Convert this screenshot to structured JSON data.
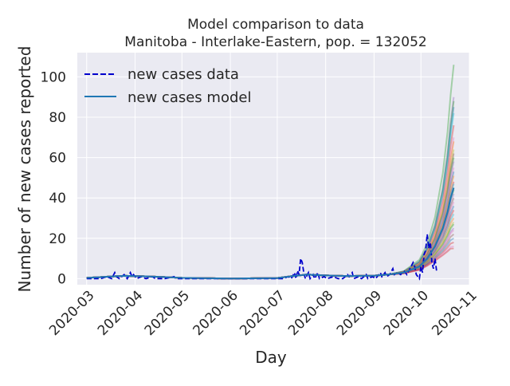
{
  "chart_data": {
    "type": "line",
    "title": "Model comparison to data",
    "subtitle": "Manitoba - Interlake-Eastern, pop. = 132052",
    "xlabel": "Day",
    "ylabel": "Number of new cases reported",
    "xlim": [
      "2020-02-24",
      "2020-11-01"
    ],
    "ylim": [
      -3,
      112
    ],
    "x_ticks": [
      "2020-03",
      "2020-04",
      "2020-05",
      "2020-06",
      "2020-07",
      "2020-08",
      "2020-09",
      "2020-10",
      "2020-11"
    ],
    "y_ticks": [
      0,
      20,
      40,
      60,
      80,
      100
    ],
    "grid": true,
    "legend_position": "top-left",
    "style": {
      "background": "#eaeaf2",
      "data_color": "#0000cc",
      "model_color": "#1f77b4"
    },
    "series": [
      {
        "name": "new cases data",
        "style": "dashed",
        "points": [
          [
            "2020-03-01",
            0
          ],
          [
            "2020-03-10",
            0
          ],
          [
            "2020-03-14",
            1
          ],
          [
            "2020-03-17",
            0
          ],
          [
            "2020-03-19",
            3
          ],
          [
            "2020-03-20",
            1
          ],
          [
            "2020-03-22",
            0
          ],
          [
            "2020-03-25",
            2
          ],
          [
            "2020-03-27",
            0
          ],
          [
            "2020-03-29",
            3
          ],
          [
            "2020-03-30",
            1
          ],
          [
            "2020-03-31",
            2
          ],
          [
            "2020-04-02",
            0
          ],
          [
            "2020-04-05",
            1
          ],
          [
            "2020-04-08",
            0
          ],
          [
            "2020-04-12",
            1
          ],
          [
            "2020-04-14",
            0
          ],
          [
            "2020-04-20",
            0
          ],
          [
            "2020-04-26",
            1
          ],
          [
            "2020-04-27",
            0
          ],
          [
            "2020-05-15",
            0
          ],
          [
            "2020-06-15",
            0
          ],
          [
            "2020-07-05",
            0
          ],
          [
            "2020-07-08",
            1
          ],
          [
            "2020-07-10",
            0
          ],
          [
            "2020-07-12",
            3
          ],
          [
            "2020-07-13",
            0
          ],
          [
            "2020-07-14",
            4
          ],
          [
            "2020-07-15",
            2
          ],
          [
            "2020-07-16",
            10
          ],
          [
            "2020-07-17",
            8
          ],
          [
            "2020-07-18",
            3
          ],
          [
            "2020-07-19",
            0
          ],
          [
            "2020-07-21",
            3
          ],
          [
            "2020-07-22",
            0
          ],
          [
            "2020-07-24",
            2
          ],
          [
            "2020-07-25",
            0
          ],
          [
            "2020-07-27",
            3
          ],
          [
            "2020-07-28",
            0
          ],
          [
            "2020-07-31",
            1
          ],
          [
            "2020-08-02",
            0
          ],
          [
            "2020-08-06",
            1
          ],
          [
            "2020-08-09",
            0
          ],
          [
            "2020-08-12",
            0
          ],
          [
            "2020-08-15",
            2
          ],
          [
            "2020-08-16",
            1
          ],
          [
            "2020-08-18",
            3
          ],
          [
            "2020-08-19",
            0
          ],
          [
            "2020-08-22",
            1
          ],
          [
            "2020-08-24",
            0
          ],
          [
            "2020-08-27",
            2
          ],
          [
            "2020-08-28",
            0
          ],
          [
            "2020-08-31",
            1
          ],
          [
            "2020-09-02",
            0
          ],
          [
            "2020-09-05",
            3
          ],
          [
            "2020-09-06",
            1
          ],
          [
            "2020-09-08",
            3
          ],
          [
            "2020-09-09",
            1
          ],
          [
            "2020-09-11",
            2
          ],
          [
            "2020-09-13",
            5
          ],
          [
            "2020-09-14",
            2
          ],
          [
            "2020-09-16",
            3
          ],
          [
            "2020-09-18",
            2
          ],
          [
            "2020-09-20",
            4
          ],
          [
            "2020-09-22",
            2
          ],
          [
            "2020-09-24",
            5
          ],
          [
            "2020-09-26",
            8
          ],
          [
            "2020-09-27",
            6
          ],
          [
            "2020-09-28",
            2
          ],
          [
            "2020-09-30",
            0
          ],
          [
            "2020-10-01",
            6
          ],
          [
            "2020-10-02",
            3
          ],
          [
            "2020-10-03",
            12
          ],
          [
            "2020-10-04",
            14
          ],
          [
            "2020-10-05",
            22
          ],
          [
            "2020-10-06",
            15
          ],
          [
            "2020-10-07",
            18
          ],
          [
            "2020-10-08",
            8
          ],
          [
            "2020-10-09",
            5
          ],
          [
            "2020-10-10",
            10
          ],
          [
            "2020-10-11",
            4
          ]
        ]
      },
      {
        "name": "new cases model",
        "style": "solid",
        "points": [
          [
            "2020-03-01",
            0.4
          ],
          [
            "2020-03-15",
            1.0
          ],
          [
            "2020-03-25",
            1.4
          ],
          [
            "2020-04-10",
            1.1
          ],
          [
            "2020-05-01",
            0.4
          ],
          [
            "2020-06-01",
            0.1
          ],
          [
            "2020-07-01",
            0.3
          ],
          [
            "2020-07-10",
            1.2
          ],
          [
            "2020-07-20",
            2.0
          ],
          [
            "2020-08-01",
            1.6
          ],
          [
            "2020-08-15",
            1.3
          ],
          [
            "2020-09-01",
            1.5
          ],
          [
            "2020-09-10",
            2.0
          ],
          [
            "2020-09-20",
            3.0
          ],
          [
            "2020-09-30",
            6.0
          ],
          [
            "2020-10-05",
            10.0
          ],
          [
            "2020-10-10",
            16.0
          ],
          [
            "2020-10-15",
            25.0
          ],
          [
            "2020-10-18",
            33.0
          ],
          [
            "2020-10-20",
            40.0
          ],
          [
            "2020-10-22",
            45.0
          ]
        ]
      }
    ],
    "model_realizations": [
      {
        "color": "#2ca02c",
        "end_value": 106
      },
      {
        "color": "#9467bd",
        "end_value": 90
      },
      {
        "color": "#2ca02c",
        "end_value": 88
      },
      {
        "color": "#1f77b4",
        "end_value": 85
      },
      {
        "color": "#17becf",
        "end_value": 82
      },
      {
        "color": "#d62728",
        "end_value": 76
      },
      {
        "color": "#e377c2",
        "end_value": 70
      },
      {
        "color": "#ff7f0e",
        "end_value": 68
      },
      {
        "color": "#bcbd22",
        "end_value": 64
      },
      {
        "color": "#8c564b",
        "end_value": 62
      },
      {
        "color": "#2ca02c",
        "end_value": 60
      },
      {
        "color": "#9467bd",
        "end_value": 58
      },
      {
        "color": "#e377c2",
        "end_value": 55
      },
      {
        "color": "#1f77b4",
        "end_value": 53
      },
      {
        "color": "#ff7f0e",
        "end_value": 51
      },
      {
        "color": "#d62728",
        "end_value": 48
      },
      {
        "color": "#17becf",
        "end_value": 47
      },
      {
        "color": "#bcbd22",
        "end_value": 45
      },
      {
        "color": "#2ca02c",
        "end_value": 44
      },
      {
        "color": "#9467bd",
        "end_value": 42
      },
      {
        "color": "#8c564b",
        "end_value": 40
      },
      {
        "color": "#e377c2",
        "end_value": 38
      },
      {
        "color": "#1f77b4",
        "end_value": 36
      },
      {
        "color": "#d62728",
        "end_value": 34
      },
      {
        "color": "#17becf",
        "end_value": 32
      },
      {
        "color": "#ff7f0e",
        "end_value": 30
      },
      {
        "color": "#bcbd22",
        "end_value": 28
      },
      {
        "color": "#2ca02c",
        "end_value": 27
      },
      {
        "color": "#9467bd",
        "end_value": 25
      },
      {
        "color": "#e377c2",
        "end_value": 24
      },
      {
        "color": "#8c564b",
        "end_value": 22
      },
      {
        "color": "#1f77b4",
        "end_value": 20
      },
      {
        "color": "#d62728",
        "end_value": 18
      },
      {
        "color": "#e377c2",
        "end_value": 16
      },
      {
        "color": "#d62728",
        "end_value": 15
      }
    ]
  }
}
